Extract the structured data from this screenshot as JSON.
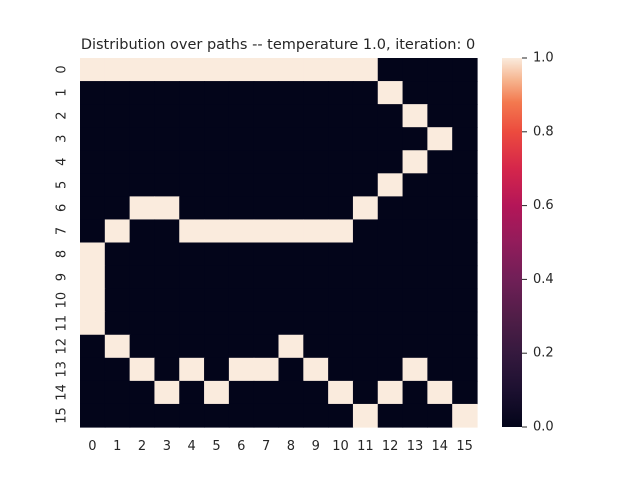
{
  "chart_data": {
    "type": "heatmap",
    "title": "Distribution over paths -- temperature 1.0, iteration: 0",
    "xlabel": "",
    "ylabel": "",
    "x_tick_labels": [
      "0",
      "1",
      "2",
      "3",
      "4",
      "5",
      "6",
      "7",
      "8",
      "9",
      "10",
      "11",
      "12",
      "13",
      "14",
      "15"
    ],
    "y_tick_labels": [
      "0",
      "1",
      "2",
      "3",
      "4",
      "5",
      "6",
      "7",
      "8",
      "9",
      "10",
      "11",
      "12",
      "13",
      "14",
      "15"
    ],
    "vmin": 0.0,
    "vmax": 1.0,
    "colorbar_ticks": [
      "0.0",
      "0.2",
      "0.4",
      "0.6",
      "0.8",
      "1.0"
    ],
    "colormap": "rocket",
    "colors": {
      "low": "#03051a",
      "high": "#faebdd"
    },
    "values": [
      [
        1,
        1,
        1,
        1,
        1,
        1,
        1,
        1,
        1,
        1,
        1,
        1,
        0,
        0,
        0,
        0
      ],
      [
        0,
        0,
        0,
        0,
        0,
        0,
        0,
        0,
        0,
        0,
        0,
        0,
        1,
        0,
        0,
        0
      ],
      [
        0,
        0,
        0,
        0,
        0,
        0,
        0,
        0,
        0,
        0,
        0,
        0,
        0,
        1,
        0,
        0
      ],
      [
        0,
        0,
        0,
        0,
        0,
        0,
        0,
        0,
        0,
        0,
        0,
        0,
        0,
        0,
        1,
        0
      ],
      [
        0,
        0,
        0,
        0,
        0,
        0,
        0,
        0,
        0,
        0,
        0,
        0,
        0,
        1,
        0,
        0
      ],
      [
        0,
        0,
        0,
        0,
        0,
        0,
        0,
        0,
        0,
        0,
        0,
        0,
        1,
        0,
        0,
        0
      ],
      [
        0,
        0,
        1,
        1,
        0,
        0,
        0,
        0,
        0,
        0,
        0,
        1,
        0,
        0,
        0,
        0
      ],
      [
        0,
        1,
        0,
        0,
        1,
        1,
        1,
        1,
        1,
        1,
        1,
        0,
        0,
        0,
        0,
        0
      ],
      [
        1,
        0,
        0,
        0,
        0,
        0,
        0,
        0,
        0,
        0,
        0,
        0,
        0,
        0,
        0,
        0
      ],
      [
        1,
        0,
        0,
        0,
        0,
        0,
        0,
        0,
        0,
        0,
        0,
        0,
        0,
        0,
        0,
        0
      ],
      [
        1,
        0,
        0,
        0,
        0,
        0,
        0,
        0,
        0,
        0,
        0,
        0,
        0,
        0,
        0,
        0
      ],
      [
        1,
        0,
        0,
        0,
        0,
        0,
        0,
        0,
        0,
        0,
        0,
        0,
        0,
        0,
        0,
        0
      ],
      [
        0,
        1,
        0,
        0,
        0,
        0,
        0,
        0,
        1,
        0,
        0,
        0,
        0,
        0,
        0,
        0
      ],
      [
        0,
        0,
        1,
        0,
        1,
        0,
        1,
        1,
        0,
        1,
        0,
        0,
        0,
        1,
        0,
        0
      ],
      [
        0,
        0,
        0,
        1,
        0,
        1,
        0,
        0,
        0,
        0,
        1,
        0,
        1,
        0,
        1,
        0
      ],
      [
        0,
        0,
        0,
        0,
        0,
        0,
        0,
        0,
        0,
        0,
        0,
        1,
        0,
        0,
        0,
        1
      ]
    ]
  }
}
